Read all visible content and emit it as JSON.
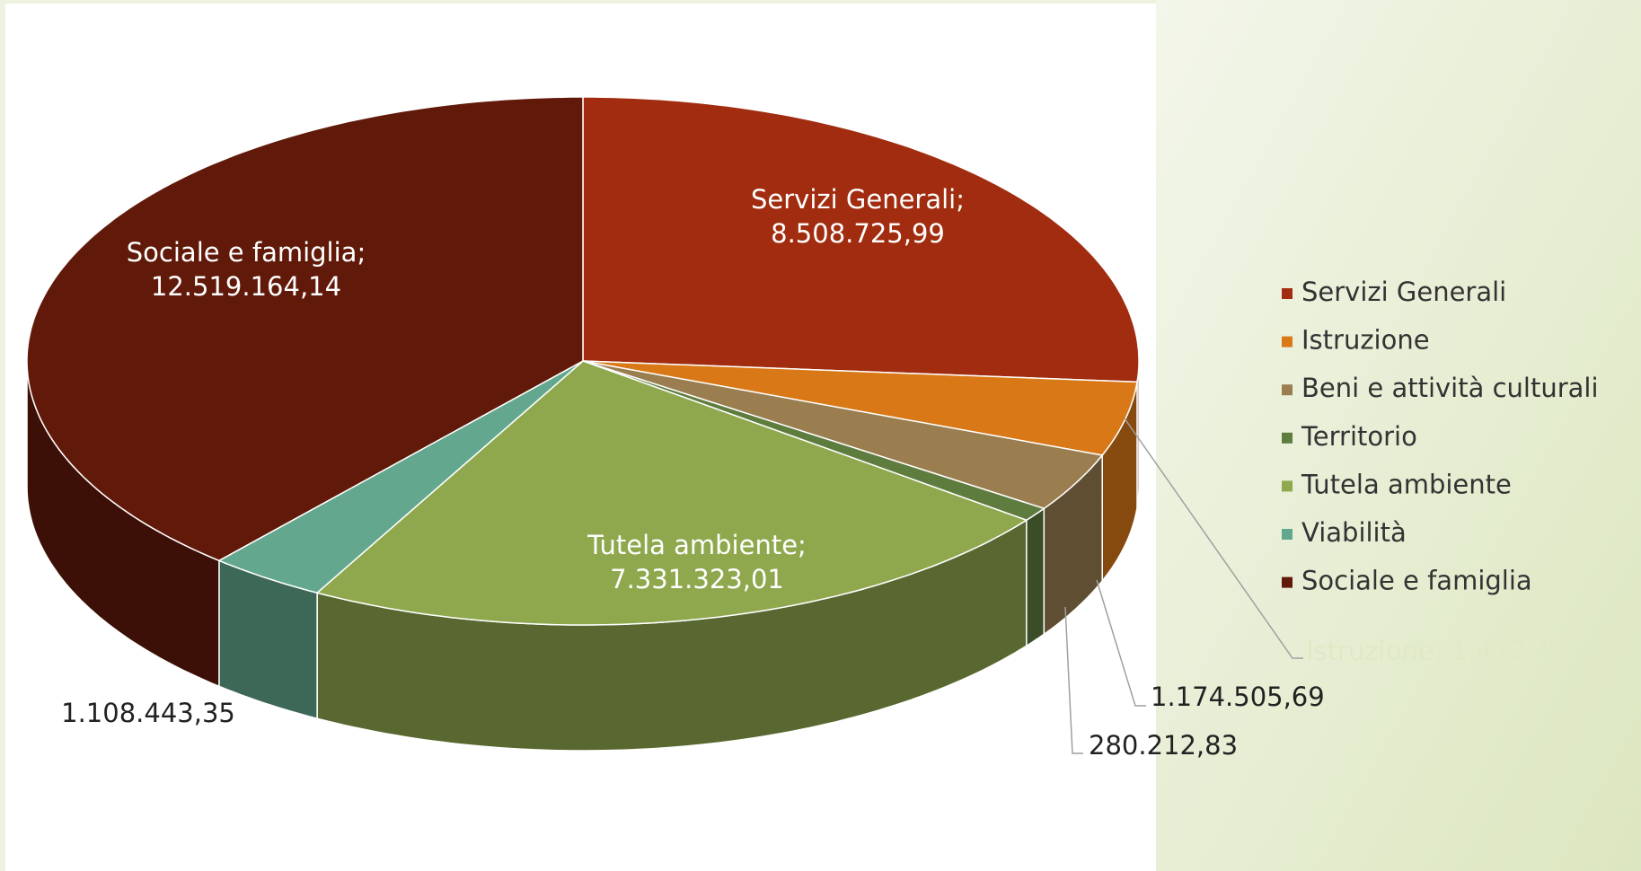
{
  "chart_data": {
    "type": "pie",
    "three_d": true,
    "categories": [
      "Servizi Generali",
      "Istruzione",
      "Beni e attività culturali",
      "Territorio",
      "Tutela ambiente",
      "Viabilità",
      "Sociale e famiglia"
    ],
    "values": [
      8508725.99,
      1472466.63,
      1174505.69,
      280212.83,
      7331323.01,
      1108443.35,
      12519164.14
    ],
    "value_labels": [
      "Servizi Generali; 8.508.725,99",
      "Istruzione; 1.472.466,63",
      "1.174.505,69",
      "280.212,83",
      "Tutela ambiente; 7.331.323,01",
      "1.108.443,35",
      "Sociale e famiglia; 12.519.164,14"
    ],
    "colors": [
      "#a12c0f",
      "#d97817",
      "#9a7e50",
      "#5f7c3f",
      "#8fa84e",
      "#63a88e",
      "#611a09"
    ],
    "legend": "right"
  }
}
